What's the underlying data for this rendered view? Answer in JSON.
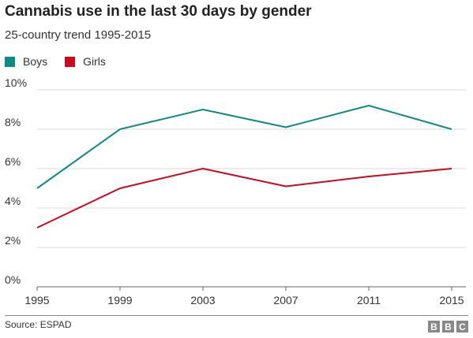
{
  "chart_data": {
    "type": "line",
    "title": "Cannabis use in the last 30 days by gender",
    "subtitle": "25-country trend 1995-2015",
    "x": [
      "1995",
      "1999",
      "2003",
      "2007",
      "2011",
      "2015"
    ],
    "series": [
      {
        "name": "Boys",
        "color": "#0f8a87",
        "values": [
          5.0,
          8.0,
          9.0,
          8.1,
          9.2,
          8.0
        ]
      },
      {
        "name": "Girls",
        "color": "#cc0a1e",
        "values": [
          3.0,
          5.0,
          6.0,
          5.1,
          5.6,
          6.0
        ]
      }
    ],
    "y_ticks": [
      "0%",
      "2%",
      "4%",
      "6%",
      "8%",
      "10%"
    ],
    "ylim": [
      0,
      10
    ],
    "grid": true,
    "legend_position": "top-left"
  },
  "footer": {
    "source": "Source: ESPAD",
    "logo_letters": [
      "B",
      "B",
      "C"
    ]
  }
}
